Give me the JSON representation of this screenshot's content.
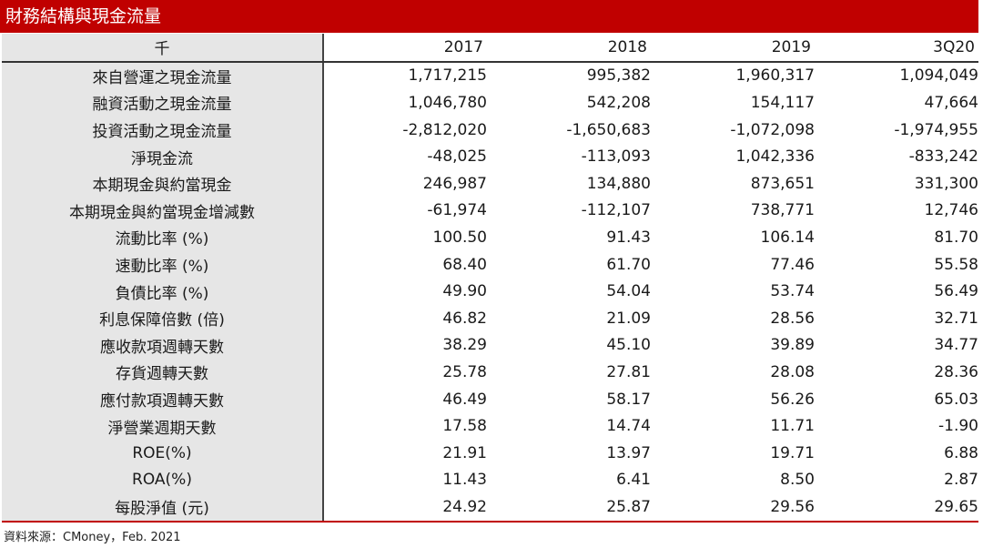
{
  "title": "財務結構與現金流量",
  "header": {
    "unit": "千",
    "periods": [
      "2017",
      "2018",
      "2019",
      "3Q20"
    ]
  },
  "rows": [
    {
      "label": "來自營運之現金流量",
      "values": [
        "1,717,215",
        "995,382",
        "1,960,317",
        "1,094,049"
      ]
    },
    {
      "label": "融資活動之現金流量",
      "values": [
        "1,046,780",
        "542,208",
        "154,117",
        "47,664"
      ]
    },
    {
      "label": "投資活動之現金流量",
      "values": [
        "-2,812,020",
        "-1,650,683",
        "-1,072,098",
        "-1,974,955"
      ]
    },
    {
      "label": "淨現金流",
      "values": [
        "-48,025",
        "-113,093",
        "1,042,336",
        "-833,242"
      ]
    },
    {
      "label": "本期現金與約當現金",
      "values": [
        "246,987",
        "134,880",
        "873,651",
        "331,300"
      ]
    },
    {
      "label": "本期現金與約當現金增減數",
      "values": [
        "-61,974",
        "-112,107",
        "738,771",
        "12,746"
      ]
    },
    {
      "label": "流動比率 (%)",
      "values": [
        "100.50",
        "91.43",
        "106.14",
        "81.70"
      ]
    },
    {
      "label": "速動比率 (%)",
      "values": [
        "68.40",
        "61.70",
        "77.46",
        "55.58"
      ]
    },
    {
      "label": "負債比率 (%)",
      "values": [
        "49.90",
        "54.04",
        "53.74",
        "56.49"
      ]
    },
    {
      "label": "利息保障倍數 (倍)",
      "values": [
        "46.82",
        "21.09",
        "28.56",
        "32.71"
      ]
    },
    {
      "label": "應收款項週轉天數",
      "values": [
        "38.29",
        "45.10",
        "39.89",
        "34.77"
      ]
    },
    {
      "label": "存貨週轉天數",
      "values": [
        "25.78",
        "27.81",
        "28.08",
        "28.36"
      ]
    },
    {
      "label": "應付款項週轉天數",
      "values": [
        "46.49",
        "58.17",
        "56.26",
        "65.03"
      ]
    },
    {
      "label": "淨營業週期天數",
      "values": [
        "17.58",
        "14.74",
        "11.71",
        "-1.90"
      ]
    },
    {
      "label": "ROE(%)",
      "values": [
        "21.91",
        "13.97",
        "19.71",
        "6.88"
      ]
    },
    {
      "label": "ROA(%)",
      "values": [
        "11.43",
        "6.41",
        "8.50",
        "2.87"
      ]
    },
    {
      "label": "每股淨值 (元)",
      "values": [
        "24.92",
        "25.87",
        "29.56",
        "29.65"
      ]
    }
  ],
  "source": "資料來源：CMoney，Feb. 2021",
  "colors": {
    "title_bar": "#c00000",
    "label_column": "#e6e6e6"
  }
}
